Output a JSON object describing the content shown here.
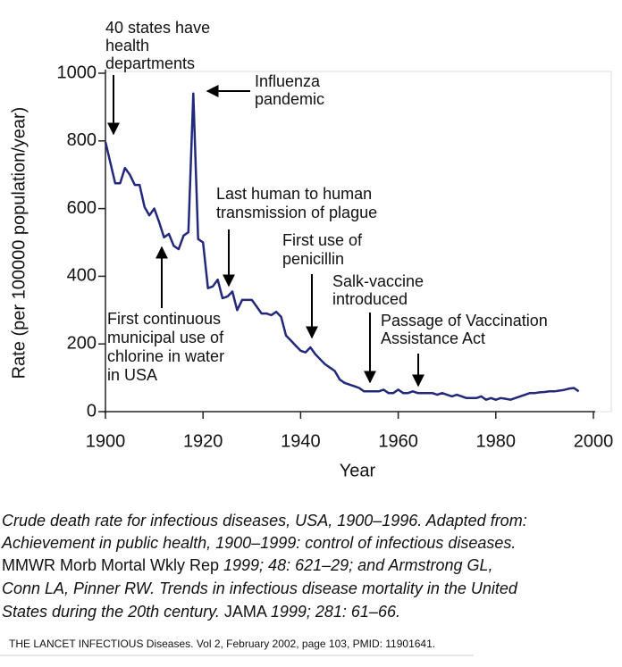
{
  "chart_data": {
    "type": "line",
    "x_label": "Year",
    "y_label": "Rate (per 100000 population/year)",
    "xlim": [
      1900,
      2000
    ],
    "xticks": [
      1900,
      1920,
      1940,
      1960,
      1980,
      2000
    ],
    "ylim": [
      0,
      1000
    ],
    "yticks": [
      0,
      200,
      400,
      600,
      800,
      1000
    ],
    "series": [
      {
        "color": "#23287a",
        "x": [
          1900,
          1902,
          1903,
          1904,
          1905,
          1906,
          1907,
          1908,
          1909,
          1910,
          1911,
          1912,
          1913,
          1914,
          1915,
          1916,
          1917,
          1918,
          1919,
          1920,
          1921,
          1922,
          1923,
          1924,
          1925,
          1926,
          1927,
          1928,
          1929,
          1930,
          1931,
          1932,
          1933,
          1934,
          1935,
          1936,
          1937,
          1938,
          1939,
          1940,
          1941,
          1942,
          1943,
          1944,
          1945,
          1946,
          1947,
          1948,
          1949,
          1950,
          1951,
          1952,
          1953,
          1954,
          1955,
          1956,
          1957,
          1958,
          1959,
          1960,
          1961,
          1962,
          1963,
          1964,
          1965,
          1966,
          1967,
          1968,
          1969,
          1970,
          1971,
          1972,
          1973,
          1974,
          1975,
          1976,
          1977,
          1978,
          1979,
          1980,
          1981,
          1982,
          1983,
          1984,
          1985,
          1986,
          1987,
          1988,
          1989,
          1990,
          1991,
          1992,
          1993,
          1994,
          1995,
          1996,
          1997
        ],
        "values": [
          797,
          675,
          675,
          720,
          700,
          670,
          670,
          605,
          580,
          600,
          560,
          515,
          525,
          490,
          480,
          520,
          530,
          940,
          510,
          500,
          365,
          370,
          390,
          335,
          340,
          355,
          300,
          330,
          330,
          330,
          310,
          290,
          290,
          285,
          295,
          280,
          225,
          210,
          195,
          180,
          175,
          190,
          170,
          155,
          140,
          130,
          120,
          95,
          85,
          80,
          75,
          70,
          60,
          60,
          60,
          60,
          65,
          55,
          55,
          65,
          55,
          55,
          60,
          55,
          55,
          55,
          55,
          50,
          55,
          50,
          45,
          50,
          45,
          40,
          40,
          40,
          45,
          35,
          40,
          35,
          40,
          38,
          35,
          40,
          45,
          50,
          55,
          55,
          57,
          58,
          60,
          60,
          62,
          64,
          68,
          70,
          60
        ]
      }
    ],
    "annotations": [
      {
        "lines": [
          "40 states have",
          "health",
          "departments"
        ]
      },
      {
        "lines": [
          "Influenza",
          "pandemic"
        ]
      },
      {
        "lines": [
          "Last human to human",
          "transmission of plague"
        ]
      },
      {
        "lines": [
          "First use of",
          "penicillin"
        ]
      },
      {
        "lines": [
          "Salk-vaccine",
          "introduced"
        ]
      },
      {
        "lines": [
          "Passage of Vaccination",
          "Assistance Act"
        ]
      },
      {
        "lines": [
          "First continuous",
          "municipal use of",
          "chlorine in water",
          "in USA"
        ]
      }
    ]
  },
  "caption": {
    "lines": [
      [
        "Crude death rate for infectious diseases, USA, 1900–1996. Adapted from:"
      ],
      [
        "Achievement in public health, 1900–1999: control of infectious diseases."
      ],
      [
        "MMWR Morb Mortal Wkly Rep ",
        "1999; 48: 621–29; and Armstrong GL,"
      ],
      [
        "Conn LA, Pinner RW. Trends in infectious disease mortality in the United"
      ],
      [
        "States during the 20th century.",
        " JAMA ",
        "1999; 281: 61–66."
      ]
    ]
  },
  "footer": "THE LANCET INFECTIOUS Diseases. Vol 2, February 2002, page 103,  PMID: 11901641."
}
